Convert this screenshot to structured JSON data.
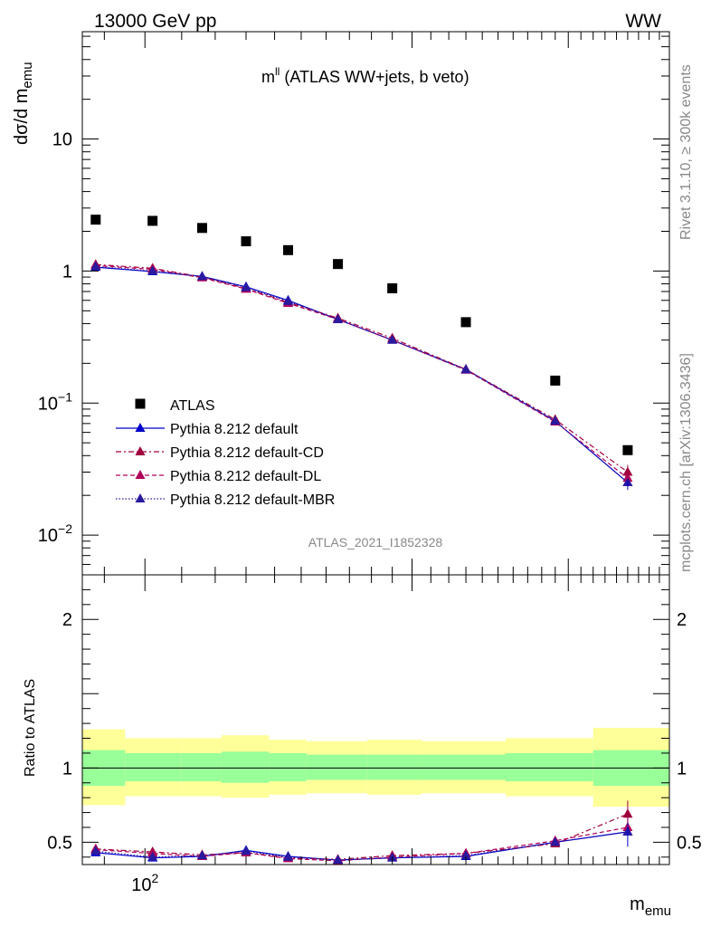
{
  "header": {
    "left_label": "13000 GeV pp",
    "right_label": "WW"
  },
  "side_labels": {
    "rivet": "Rivet 3.1.10, ≥ 300k events",
    "mcplots": "mcplots.cern.ch [arXiv:1306.3436]"
  },
  "chart_data": [
    {
      "type": "scatter",
      "title_main": "m",
      "title_sup": "ll",
      "title_rest": " (ATLAS WW+jets, b veto)",
      "ylabel_main": "dσ/d m",
      "ylabel_sub": "emu",
      "xlabel_main": "m",
      "xlabel_sub": "emu",
      "watermark": "ATLAS_2021_I1852328",
      "y_scale": "log",
      "x_scale": "log",
      "xlim": [
        85,
        390
      ],
      "ylim": [
        0.005,
        65
      ],
      "y_tick_labels": [
        {
          "base": "10",
          "exp": "−2",
          "value": 0.01
        },
        {
          "base": "10",
          "exp": "−1",
          "value": 0.1
        },
        {
          "base": "1",
          "exp": "",
          "value": 1
        },
        {
          "base": "10",
          "exp": "",
          "value": 10
        }
      ],
      "legend_position": "lower-left",
      "x": [
        88,
        102,
        116,
        130,
        145,
        165,
        190,
        230,
        290,
        350
      ],
      "bin_edges": [
        85,
        95,
        110,
        122,
        138,
        152,
        178,
        205,
        255,
        320,
        390
      ],
      "series": [
        {
          "name": "ATLAS",
          "color": "#000000",
          "marker": "square",
          "line": "none",
          "values": [
            2.45,
            2.4,
            2.12,
            1.68,
            1.44,
            1.13,
            0.74,
            0.41,
            0.148,
            0.044
          ]
        },
        {
          "name": "Pythia 8.212 default",
          "color": "#0000cc",
          "marker": "triangle",
          "line": "solid",
          "values": [
            1.07,
            0.99,
            0.91,
            0.76,
            0.6,
            0.43,
            0.3,
            0.18,
            0.073,
            0.025
          ]
        },
        {
          "name": "Pythia 8.212 default-CD",
          "color": "#a0003c",
          "marker": "triangle",
          "line": "dashdot",
          "values": [
            1.12,
            1.05,
            0.9,
            0.74,
            0.58,
            0.44,
            0.31,
            0.18,
            0.075,
            0.03
          ]
        },
        {
          "name": "Pythia 8.212 default-DL",
          "color": "#b0005a",
          "marker": "triangle",
          "line": "dashed",
          "values": [
            1.1,
            1.03,
            0.89,
            0.73,
            0.57,
            0.43,
            0.3,
            0.178,
            0.072,
            0.027
          ]
        },
        {
          "name": "Pythia 8.212 default-MBR",
          "color": "#2a1aa0",
          "marker": "triangle",
          "line": "dotted",
          "values": [
            1.08,
            1.0,
            0.91,
            0.75,
            0.59,
            0.43,
            0.3,
            0.179,
            0.073,
            0.025
          ]
        }
      ]
    },
    {
      "type": "line",
      "ylabel": "Ratio to ATLAS",
      "ylim": [
        0.35,
        2.3
      ],
      "y_tick_labels": [
        "0.5",
        "1",
        "2"
      ],
      "x_tick_label": "10",
      "x_tick_sup": "2",
      "band_bins": [
        85,
        95,
        110,
        122,
        138,
        152,
        178,
        205,
        255,
        320,
        390
      ],
      "band_green": [
        [
          0.88,
          1.12
        ],
        [
          0.91,
          1.1
        ],
        [
          0.91,
          1.1
        ],
        [
          0.9,
          1.11
        ],
        [
          0.91,
          1.1
        ],
        [
          0.92,
          1.09
        ],
        [
          0.92,
          1.09
        ],
        [
          0.92,
          1.09
        ],
        [
          0.91,
          1.1
        ],
        [
          0.88,
          1.12
        ]
      ],
      "band_yellow": [
        [
          0.75,
          1.26
        ],
        [
          0.81,
          1.2
        ],
        [
          0.81,
          1.2
        ],
        [
          0.8,
          1.22
        ],
        [
          0.82,
          1.19
        ],
        [
          0.83,
          1.18
        ],
        [
          0.82,
          1.19
        ],
        [
          0.83,
          1.18
        ],
        [
          0.81,
          1.2
        ],
        [
          0.74,
          1.27
        ]
      ],
      "series": [
        {
          "name": "Pythia 8.212 default",
          "color": "#0000cc",
          "line": "solid",
          "values": [
            0.43,
            0.395,
            0.405,
            0.445,
            0.405,
            0.38,
            0.395,
            0.405,
            0.5,
            0.57
          ]
        },
        {
          "name": "Pythia 8.212 default-CD",
          "color": "#a0003c",
          "line": "dashdot",
          "values": [
            0.455,
            0.435,
            0.415,
            0.43,
            0.395,
            0.385,
            0.41,
            0.425,
            0.49,
            0.69
          ]
        },
        {
          "name": "Pythia 8.212 default-DL",
          "color": "#b0005a",
          "line": "dashed",
          "values": [
            0.45,
            0.425,
            0.405,
            0.43,
            0.39,
            0.375,
            0.4,
            0.425,
            0.51,
            0.6
          ]
        },
        {
          "name": "Pythia 8.212 default-MBR",
          "color": "#2a1aa0",
          "line": "dotted",
          "values": [
            0.44,
            0.4,
            0.41,
            0.44,
            0.4,
            0.38,
            0.395,
            0.41,
            0.5,
            0.57
          ]
        }
      ]
    }
  ]
}
